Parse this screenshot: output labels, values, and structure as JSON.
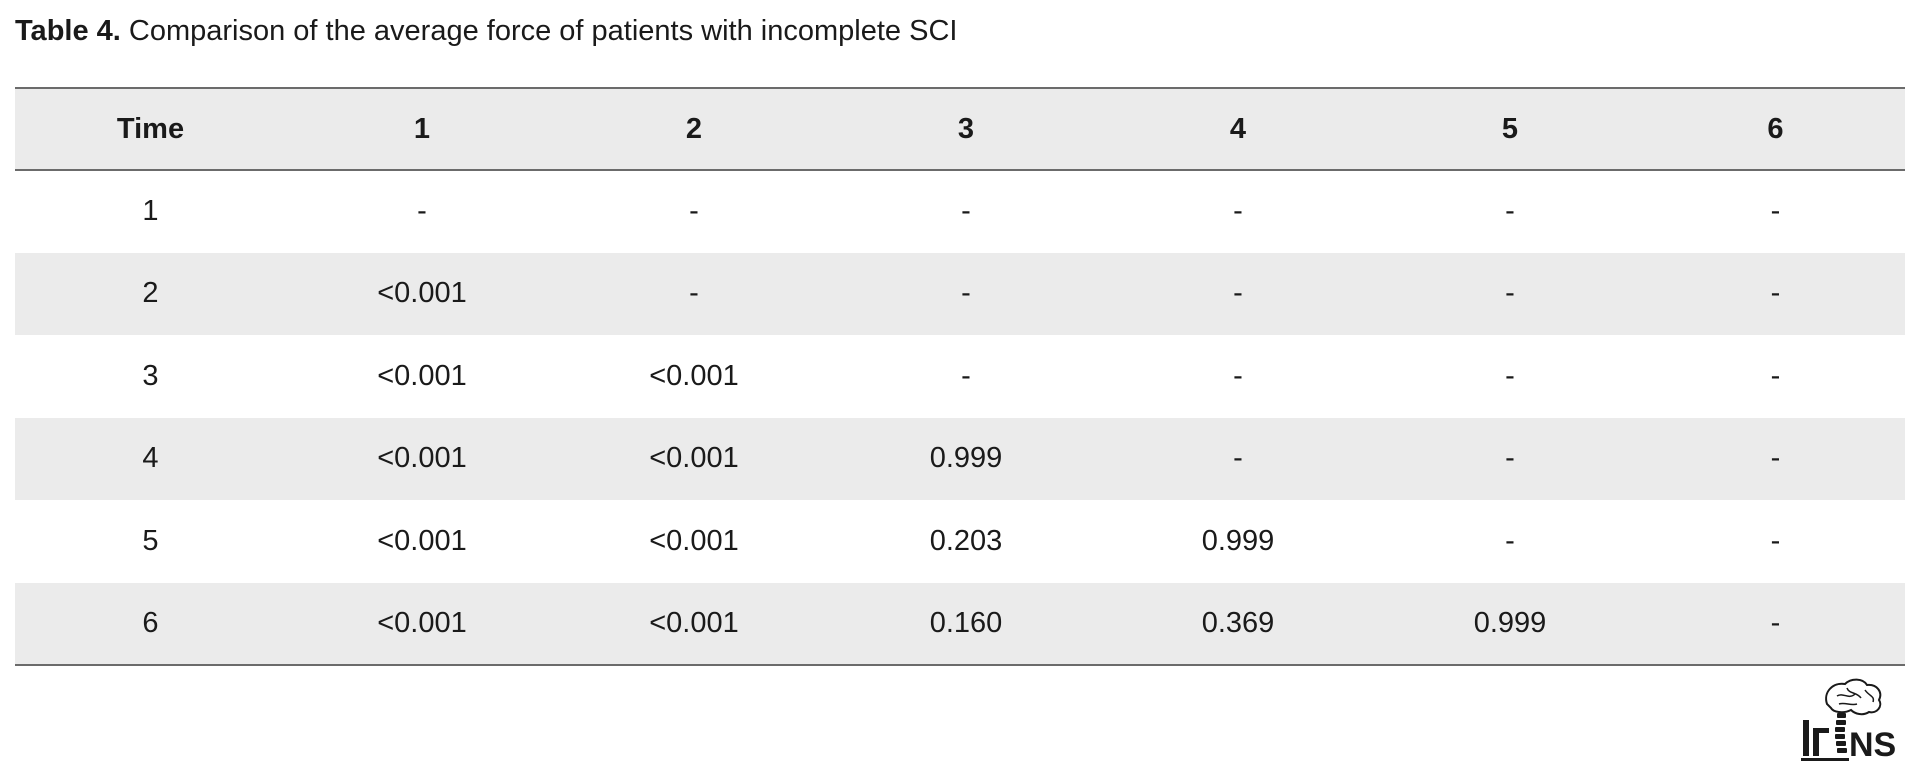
{
  "caption": {
    "label": "Table 4.",
    "text": " Comparison of the average force of patients with incomplete SCI"
  },
  "table": {
    "headers": [
      "Time",
      "1",
      "2",
      "3",
      "4",
      "5",
      "6"
    ],
    "rows": [
      [
        "1",
        "-",
        "-",
        "-",
        "-",
        "-",
        "-"
      ],
      [
        "2",
        "<0.001",
        "-",
        "-",
        "-",
        "-",
        "-"
      ],
      [
        "3",
        "<0.001",
        "<0.001",
        "-",
        "-",
        "-",
        "-"
      ],
      [
        "4",
        "<0.001",
        "<0.001",
        "0.999",
        "-",
        "-",
        "-"
      ],
      [
        "5",
        "<0.001",
        "<0.001",
        "0.203",
        "0.999",
        "-",
        "-"
      ],
      [
        "6",
        "<0.001",
        "<0.001",
        "0.160",
        "0.369",
        "0.999",
        "-"
      ]
    ]
  },
  "logo": {
    "text": "NS",
    "icon": "brain-spine-logo-icon"
  }
}
